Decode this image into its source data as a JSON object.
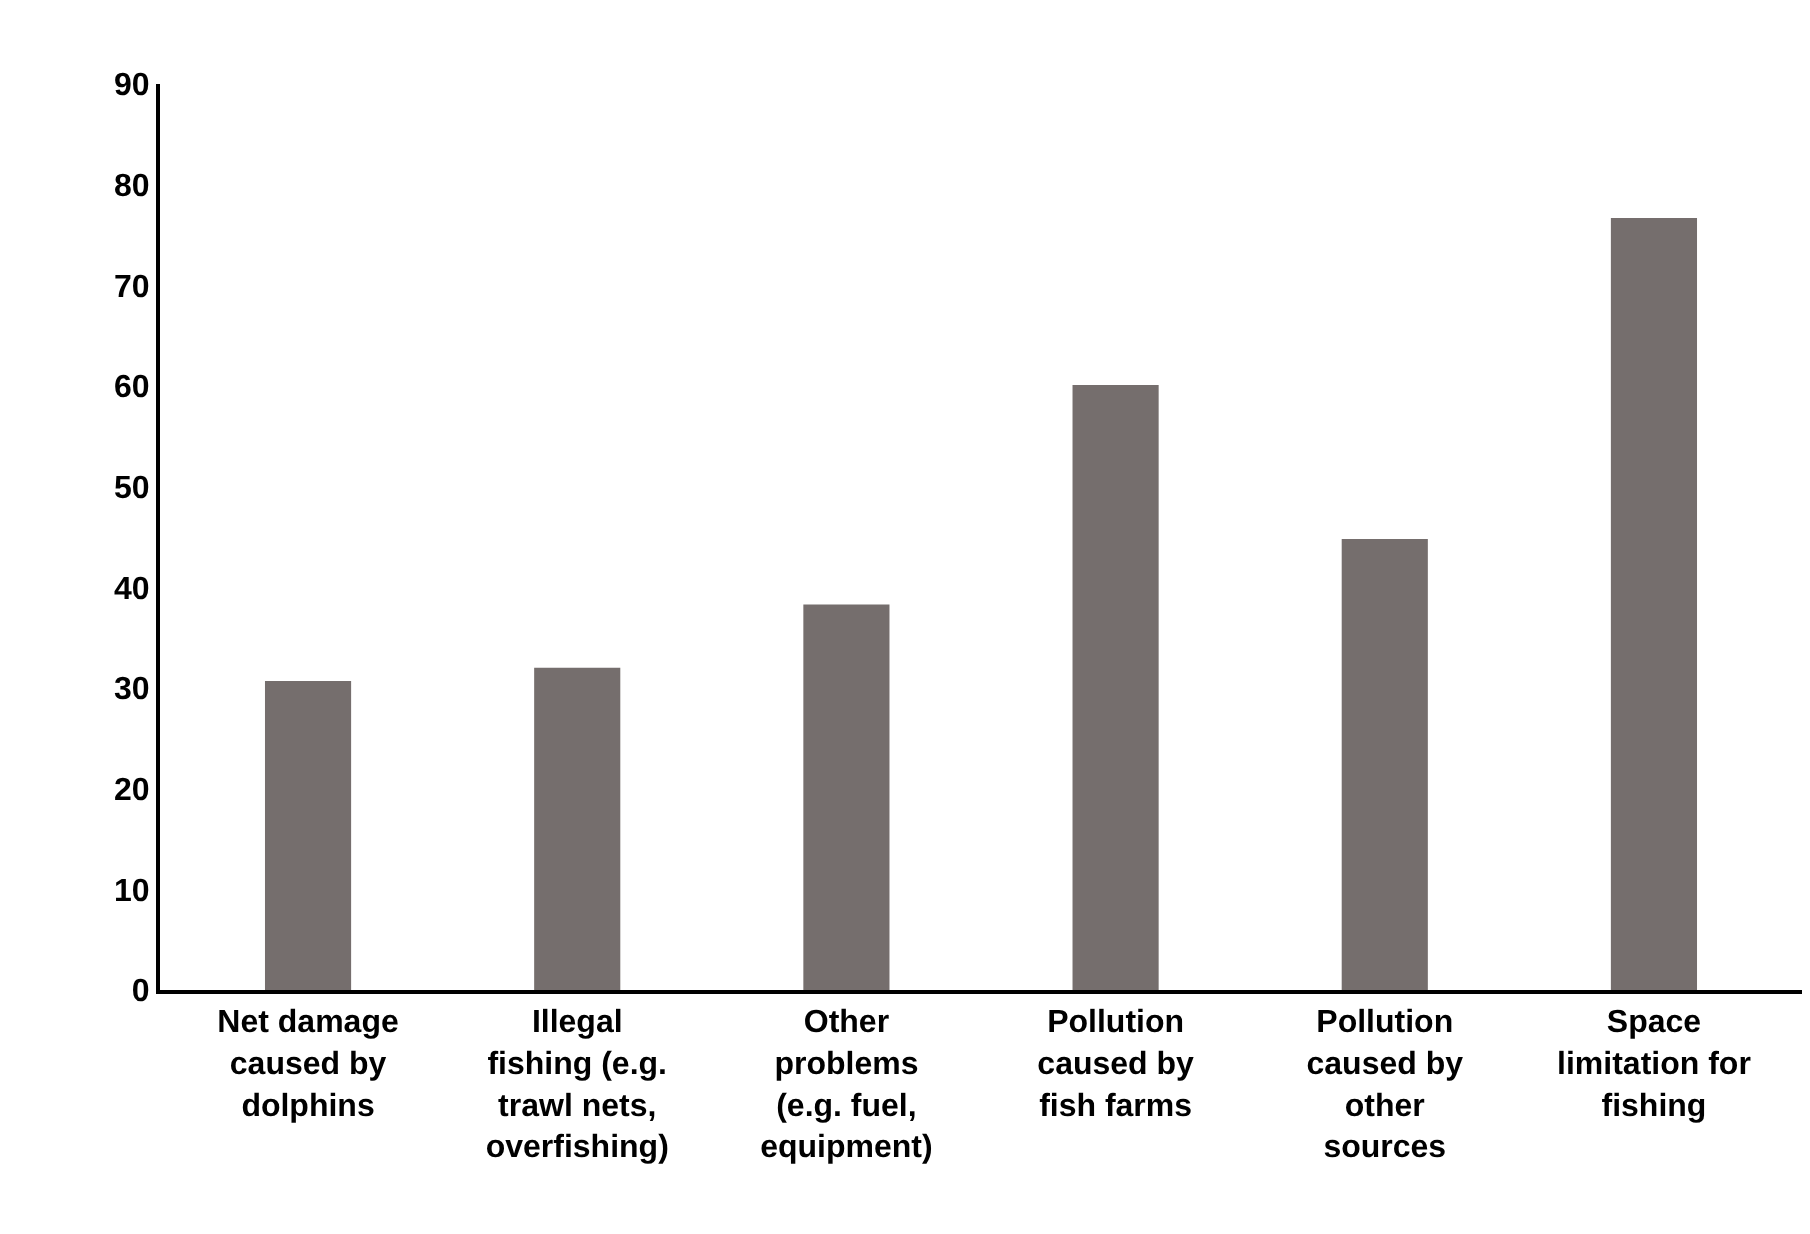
{
  "chart_data": {
    "type": "bar",
    "categories": [
      "Net damage\ncaused by\ndolphins",
      "Illegal\nfishing (e.g.\ntrawl nets,\noverfishing)",
      "Other\nproblems\n(e.g. fuel,\nequipment)",
      "Pollution\ncaused by\nfish farms",
      "Pollution\ncaused by\nother\nsources",
      "Space\nlimitation for\nfishing"
    ],
    "values": [
      30.7,
      32.0,
      38.3,
      60.1,
      44.8,
      76.7
    ],
    "color": "#756e6d",
    "ylim": [
      0,
      90
    ],
    "yticks": [
      0,
      10,
      20,
      30,
      40,
      50,
      60,
      70,
      80,
      90
    ]
  }
}
